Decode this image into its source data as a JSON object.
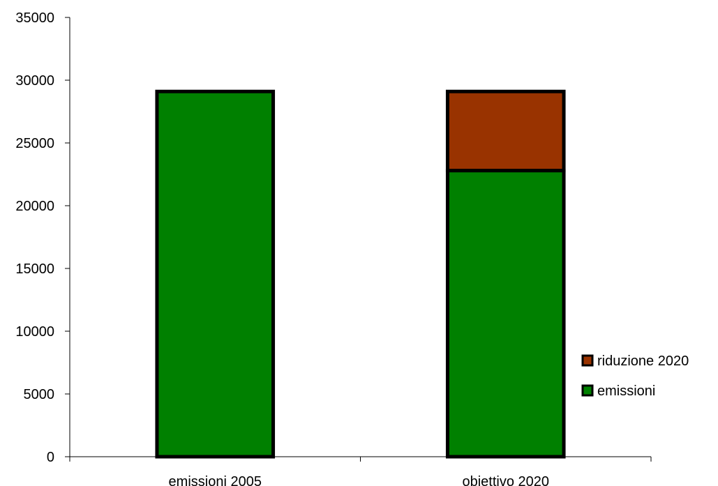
{
  "chart_data": {
    "type": "bar",
    "stacked": true,
    "categories": [
      "emissioni 2005",
      "obiettivo 2020"
    ],
    "series": [
      {
        "name": "emissioni",
        "values": [
          29100,
          22800
        ],
        "color": "#008000"
      },
      {
        "name": "riduzione 2020",
        "values": [
          0,
          6300
        ],
        "color": "#993300"
      }
    ],
    "ylim": [
      0,
      35000
    ],
    "yticks": [
      0,
      5000,
      10000,
      15000,
      20000,
      25000,
      30000,
      35000
    ],
    "title": "",
    "xlabel": "",
    "ylabel": "",
    "grid": false,
    "legend_position": "right",
    "legend_order": [
      "riduzione 2020",
      "emissioni"
    ]
  }
}
